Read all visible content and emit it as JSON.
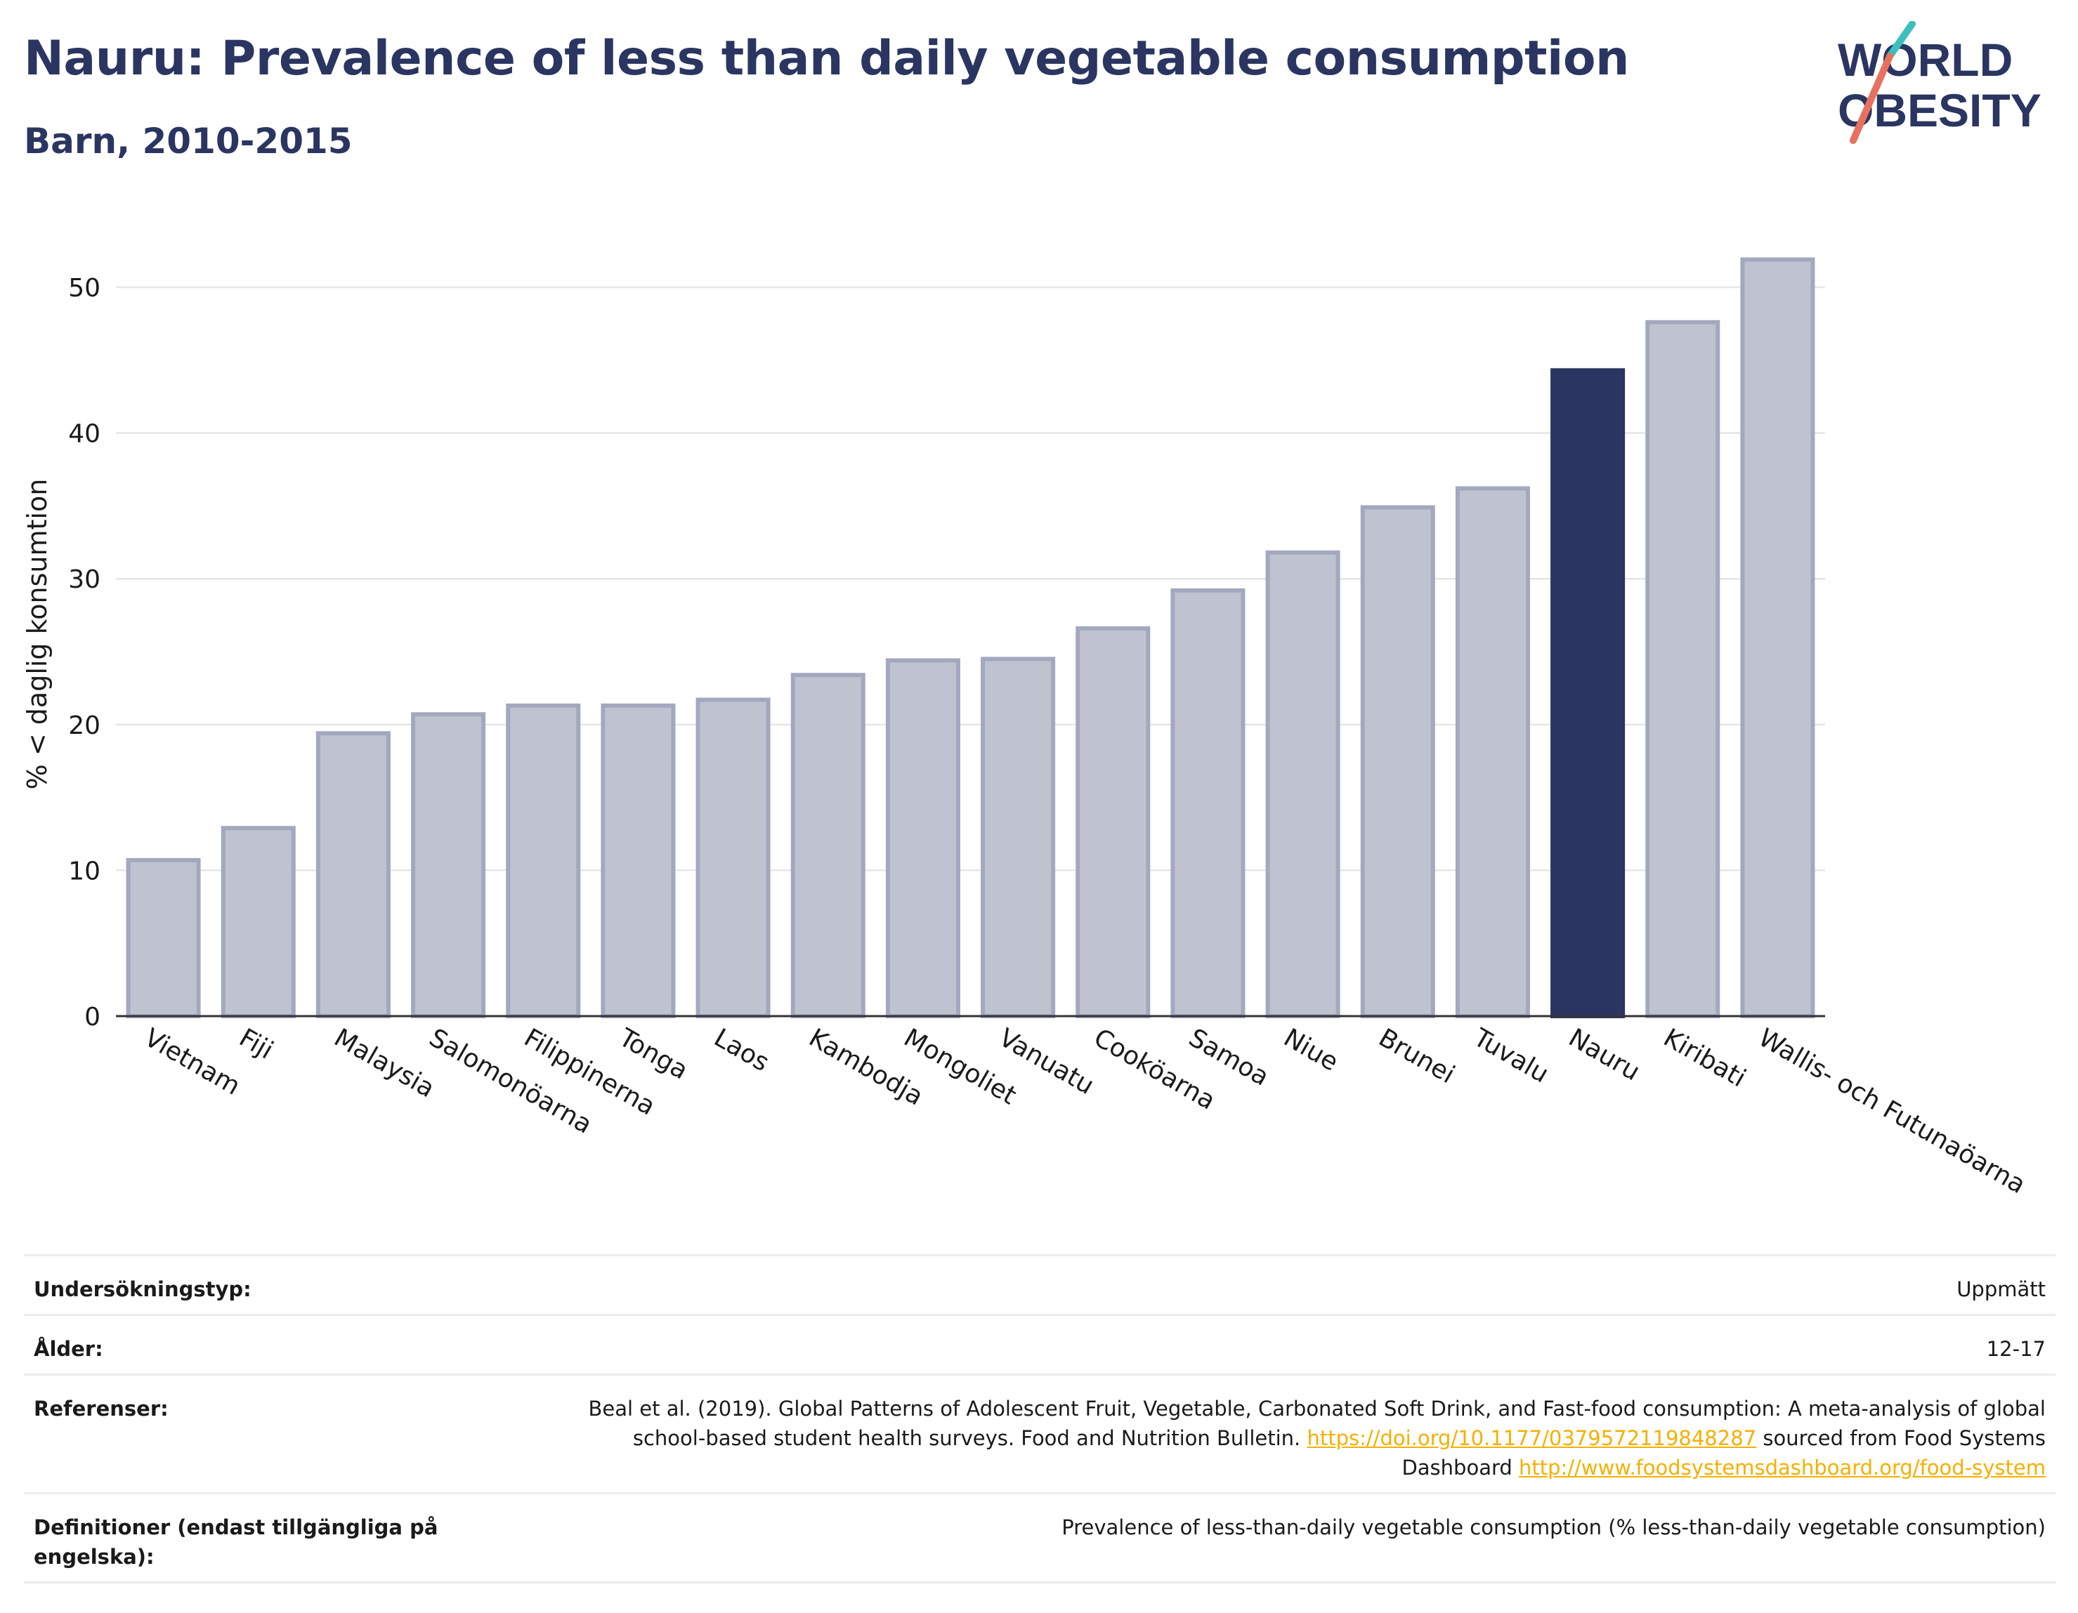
{
  "title": "Nauru: Prevalence of less than daily vegetable consumption",
  "subtitle": "Barn, 2010-2015",
  "logo": {
    "line1": "WORLD",
    "line2": "OBESITY",
    "accent_teal": "#3bbfbf",
    "accent_red": "#e8705f",
    "text_color": "#2b3561"
  },
  "colors": {
    "highlight": "#2b3561",
    "bar": "#bfc3d0",
    "bar_border": "#a3a8bf"
  },
  "chart_data": {
    "type": "bar",
    "title": "",
    "xlabel": "",
    "ylabel": "% < daglig konsumtion",
    "ylim": [
      0,
      54
    ],
    "yticks": [
      0,
      10,
      20,
      30,
      40,
      50
    ],
    "grid": true,
    "highlight": "Nauru",
    "categories": [
      "Vietnam",
      "Fiji",
      "Malaysia",
      "Salomonöarna",
      "Filippinerna",
      "Tonga",
      "Laos",
      "Kambodja",
      "Mongoliet",
      "Vanuatu",
      "Cooköarna",
      "Samoa",
      "Niue",
      "Brunei",
      "Tuvalu",
      "Nauru",
      "Kiribati",
      "Wallis- och Futunaöarna"
    ],
    "values": [
      10.7,
      12.9,
      19.4,
      20.7,
      21.3,
      21.3,
      21.7,
      23.4,
      24.4,
      24.5,
      26.6,
      29.2,
      31.8,
      34.9,
      36.2,
      44.3,
      47.6,
      51.9
    ]
  },
  "meta": {
    "survey_label": "Undersökningstyp:",
    "survey_value": "Uppmätt",
    "age_label": "Ålder:",
    "age_value": "12-17",
    "ref_label": "Referenser:",
    "ref_text1": "Beal et al. (2019). Global Patterns of Adolescent Fruit, Vegetable, Carbonated Soft Drink, and Fast-food consumption: A meta-analysis of global school-based student health surveys. Food and Nutrition Bulletin.",
    "ref_link1": "https://doi.org/10.1177/0379572119848287",
    "ref_text2": "sourced from Food Systems Dashboard",
    "ref_link2": "http://www.foodsystemsdashboard.org/food-system",
    "def_label": "Definitioner (endast tillgängliga på engelska):",
    "def_value": "Prevalence of less-than-daily vegetable consumption (% less-than-daily vegetable consumption)"
  }
}
